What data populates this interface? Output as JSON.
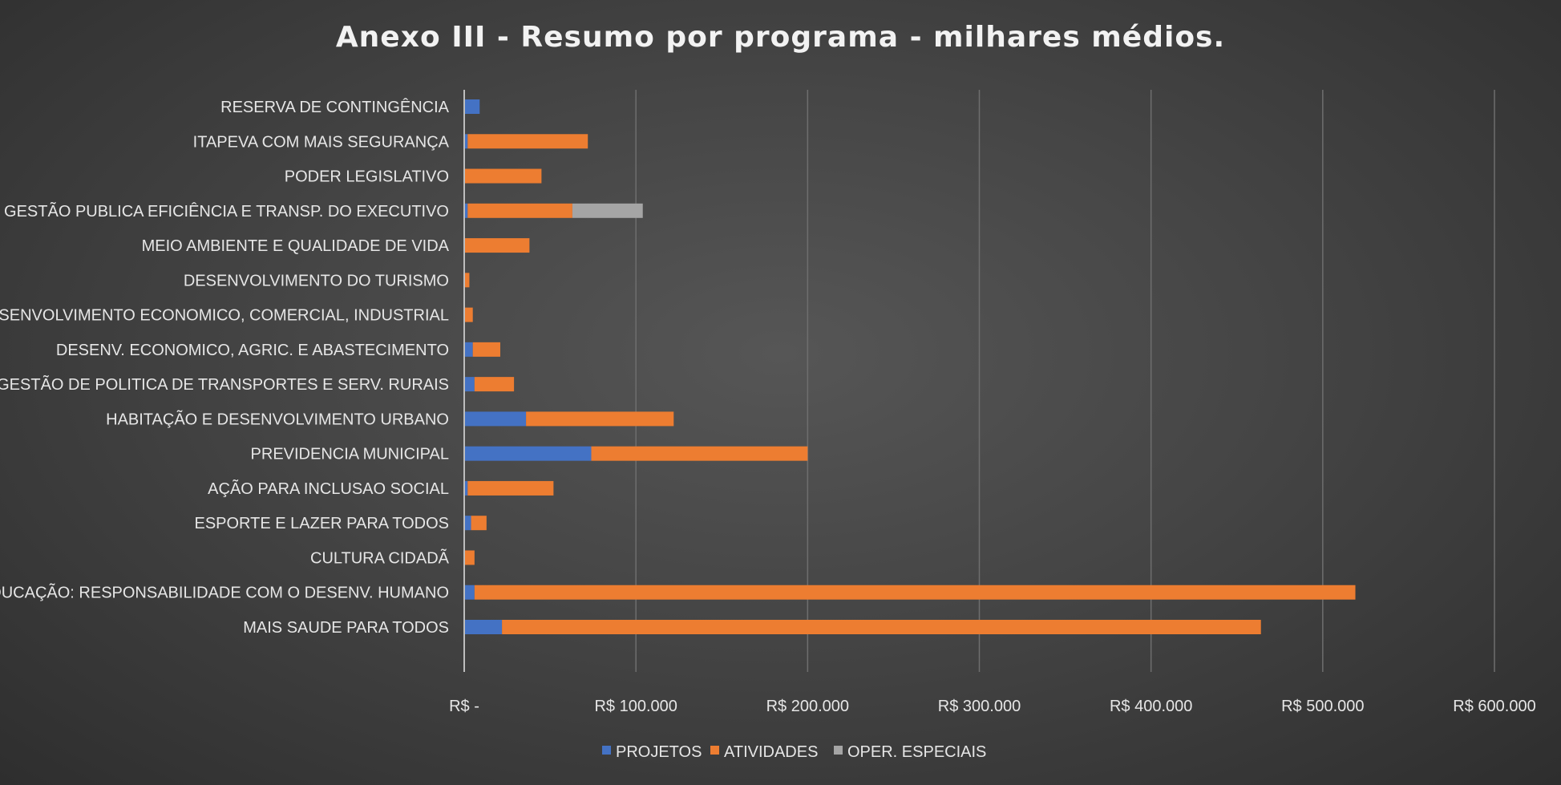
{
  "chart_data": {
    "type": "bar",
    "orientation": "horizontal",
    "stacked": true,
    "title": "Anexo III - Resumo por programa - milhares médios.",
    "categories": [
      "MAIS SAUDE PARA TODOS",
      "EDUCAÇÃO: RESPONSABILIDADE COM O DESENV. HUMANO",
      "CULTURA CIDADÃ",
      "ESPORTE E LAZER PARA TODOS",
      "AÇÃO PARA INCLUSAO SOCIAL",
      "PREVIDENCIA MUNICIPAL",
      "HABITAÇÃO E DESENVOLVIMENTO URBANO",
      "GESTÃO DE POLITICA DE TRANSPORTES E SERV. RURAIS",
      "DESENV. ECONOMICO, AGRIC. E ABASTECIMENTO",
      "DESENVOLVIMENTO ECONOMICO, COMERCIAL, INDUSTRIAL",
      "DESENVOLVIMENTO DO TURISMO",
      "MEIO AMBIENTE E QUALIDADE DE VIDA",
      "GESTÃO PUBLICA EFICIÊNCIA E TRANSP. DO EXECUTIVO",
      "PODER LEGISLATIVO",
      "ITAPEVA COM MAIS SEGURANÇA",
      "RESERVA DE CONTINGÊNCIA"
    ],
    "series": [
      {
        "name": "PROJETOS",
        "color": "#4472c4",
        "values": [
          22000,
          6000,
          0,
          4000,
          2000,
          74000,
          36000,
          6000,
          5000,
          0,
          0,
          0,
          2000,
          0,
          2000,
          9000
        ]
      },
      {
        "name": "ATIVIDADES",
        "color": "#ed7d31",
        "values": [
          442000,
          513000,
          6000,
          9000,
          50000,
          126000,
          86000,
          23000,
          16000,
          5000,
          3000,
          38000,
          61000,
          45000,
          70000,
          0
        ]
      },
      {
        "name": "OPER. ESPECIAIS",
        "color": "#a5a5a5",
        "values": [
          0,
          0,
          0,
          0,
          0,
          0,
          0,
          0,
          0,
          0,
          0,
          0,
          41000,
          0,
          0,
          0
        ]
      }
    ],
    "xlim": [
      0,
      600000
    ],
    "xticks": [
      {
        "value": 0,
        "label": "R$ -"
      },
      {
        "value": 100000,
        "label": "R$ 100.000"
      },
      {
        "value": 200000,
        "label": "R$ 200.000"
      },
      {
        "value": 300000,
        "label": "R$ 300.000"
      },
      {
        "value": 400000,
        "label": "R$ 400.000"
      },
      {
        "value": 500000,
        "label": "R$ 500.000"
      },
      {
        "value": 600000,
        "label": "R$ 600.000"
      }
    ],
    "grid": "vertical",
    "legend_position": "bottom"
  }
}
